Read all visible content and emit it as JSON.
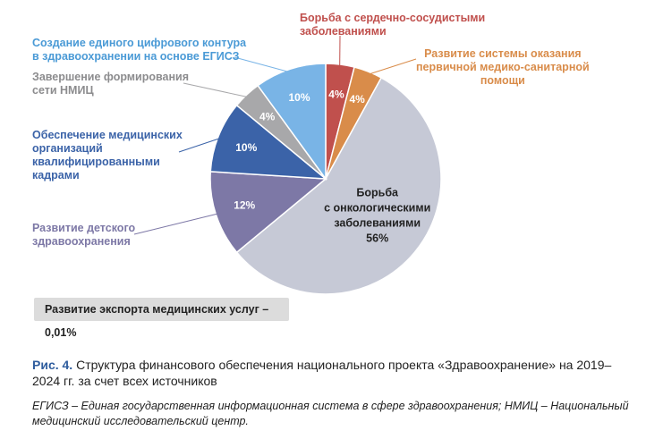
{
  "chart_data": {
    "type": "pie",
    "slices": [
      {
        "label": "Борьба с сердечно-сосудистыми\nзаболеваниями",
        "value": 4,
        "value_label": "4%",
        "color": "#c0504d"
      },
      {
        "label": "Развитие системы оказания\nпервичной медико-санитарной\nпомощи",
        "value": 4,
        "value_label": "4%",
        "color": "#d98c4a"
      },
      {
        "label": "Борьба\nс онкологическими\nзаболеваниями",
        "value": 56,
        "value_label": "56%",
        "color": "#c6c9d6"
      },
      {
        "label": "Развитие детского\nздравоохранения",
        "value": 12,
        "value_label": "12%",
        "color": "#7d78a6"
      },
      {
        "label": "Обеспечение медицинских\nорганизаций\nквалифицированными\nкадрами",
        "value": 10,
        "value_label": "10%",
        "color": "#3b63a8"
      },
      {
        "label": "Завершение формирования\nсети НМИЦ",
        "value": 4,
        "value_label": "4%",
        "color": "#a8a8aa"
      },
      {
        "label": "Создание единого цифрового контура\nв здравоохранении на основе ЕГИСЗ",
        "value": 10,
        "value_label": "10%",
        "color": "#79b4e6"
      }
    ],
    "note": "Развитие экспорта медицинских услуг – 0,01%"
  },
  "caption": {
    "label": "Рис. 4.",
    "text": " Структура финансового обеспечения национального проекта «Здравоохранение» на 2019–2024 гг. за счет всех источников"
  },
  "footnote": "ЕГИСЗ – Единая государственная информационная система в сфере здравоохранения; НМИЦ – Национальный медицинский исследовательский центр."
}
